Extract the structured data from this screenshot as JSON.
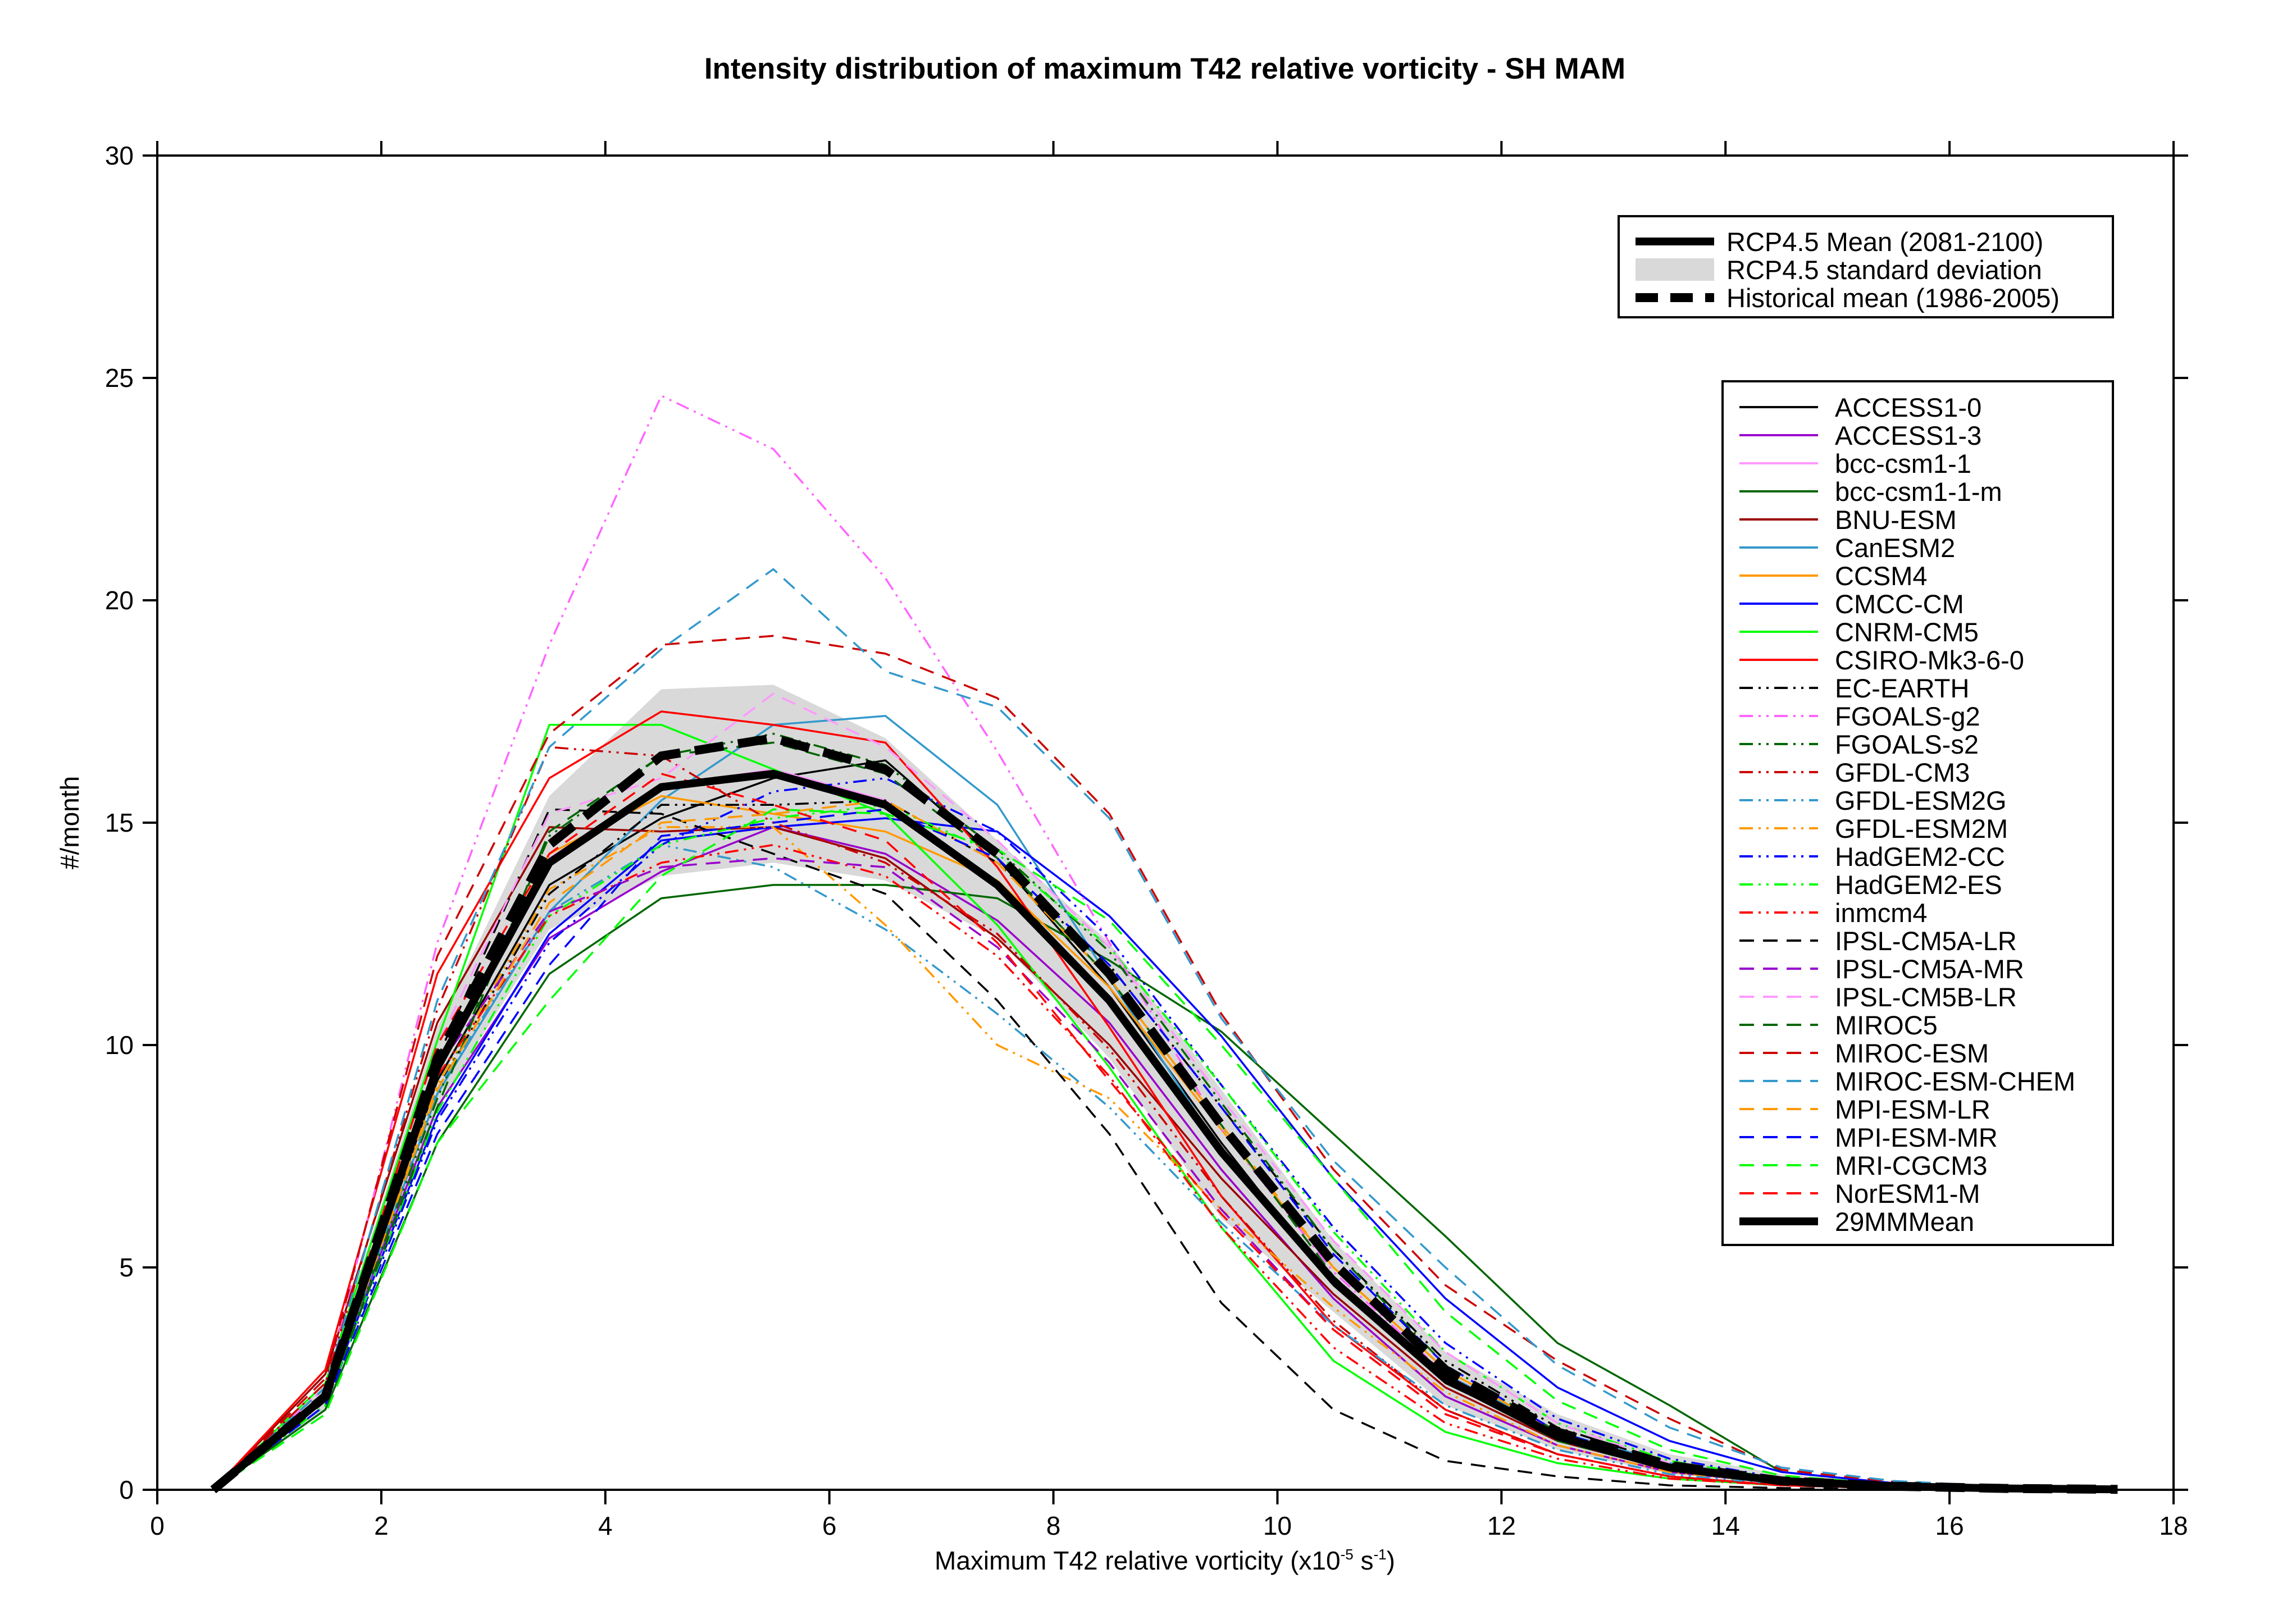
{
  "chart_data": {
    "type": "line",
    "title": "Intensity distribution of maximum T42 relative vorticity - SH MAM",
    "xlabel": {
      "main": "Maximum T42 relative vorticity (x10",
      "exp1": "-5",
      "mid": " s",
      "exp2": "-1",
      "end": ")"
    },
    "ylabel": "#/month",
    "xlim": [
      0,
      18
    ],
    "ylim": [
      0,
      30
    ],
    "xticks": [
      "0",
      "2",
      "4",
      "6",
      "8",
      "10",
      "12",
      "14",
      "16",
      "18"
    ],
    "yticks": [
      "0",
      "5",
      "10",
      "15",
      "20",
      "25",
      "30"
    ],
    "x": [
      0.5,
      1.5,
      2.5,
      3.5,
      4.5,
      5.5,
      6.5,
      7.5,
      8.5,
      9.5,
      10.5,
      11.5,
      12.5,
      13.5,
      14.5,
      15.5,
      16.5,
      17.5
    ],
    "legend_placement": "upper-right",
    "top_legend": [
      {
        "name": "RCP4.5 Mean (2081-2100)",
        "kind": "thick-solid"
      },
      {
        "name": "RCP4.5 standard deviation",
        "kind": "band"
      },
      {
        "name": "Historical mean (1986-2005)",
        "kind": "thick-dashed"
      }
    ],
    "band": {
      "upper": [
        0,
        2.4,
        10.4,
        15.6,
        18.0,
        18.1,
        16.9,
        14.6,
        12.3,
        9.0,
        5.6,
        3.1,
        1.7,
        0.8,
        0.35,
        0.15,
        0.06,
        0.03
      ],
      "lower": [
        0,
        1.8,
        8.6,
        12.6,
        13.8,
        14.1,
        13.7,
        12.4,
        9.7,
        6.1,
        4.0,
        1.9,
        0.9,
        0.35,
        0.12,
        0.05,
        0.02,
        0.01
      ]
    },
    "series": [
      {
        "name": "ACCESS1-0",
        "color": "#000000",
        "dash": "solid",
        "values": [
          0,
          2.0,
          9.2,
          13.6,
          15.1,
          16.0,
          16.4,
          14.2,
          11.3,
          7.8,
          4.6,
          2.4,
          1.2,
          0.5,
          0.2,
          0.1,
          0.04,
          0.02
        ]
      },
      {
        "name": "ACCESS1-3",
        "color": "#9900cc",
        "dash": "solid",
        "values": [
          0,
          2.1,
          8.6,
          12.4,
          13.9,
          14.9,
          14.3,
          12.8,
          10.5,
          7.2,
          4.3,
          2.1,
          1.0,
          0.4,
          0.15,
          0.06,
          0.02,
          0.01
        ]
      },
      {
        "name": "bcc-csm1-1",
        "color": "#ff99ff",
        "dash": "solid",
        "values": [
          0,
          2.2,
          9.5,
          14.2,
          15.8,
          16.2,
          15.5,
          13.6,
          11.0,
          7.6,
          4.7,
          2.5,
          1.2,
          0.5,
          0.2,
          0.08,
          0.03,
          0.01
        ]
      },
      {
        "name": "bcc-csm1-1-m",
        "color": "#006600",
        "dash": "solid",
        "values": [
          0,
          1.8,
          7.8,
          11.6,
          13.3,
          13.6,
          13.6,
          13.3,
          11.9,
          10.3,
          8.0,
          5.7,
          3.3,
          1.9,
          0.4,
          0.15,
          0.05,
          0.02
        ]
      },
      {
        "name": "BNU-ESM",
        "color": "#990000",
        "dash": "solid",
        "values": [
          0,
          2.6,
          10.5,
          14.9,
          14.8,
          14.9,
          14.2,
          12.4,
          10.0,
          7.0,
          4.4,
          2.3,
          1.1,
          0.45,
          0.17,
          0.06,
          0.02,
          0.01
        ]
      },
      {
        "name": "CanESM2",
        "color": "#3399cc",
        "dash": "solid",
        "values": [
          0,
          2.0,
          8.9,
          13.0,
          15.5,
          17.2,
          17.4,
          15.4,
          11.5,
          7.6,
          4.7,
          2.6,
          1.3,
          0.6,
          0.25,
          0.1,
          0.04,
          0.01
        ]
      },
      {
        "name": "CCSM4",
        "color": "#ff9900",
        "dash": "solid",
        "values": [
          0,
          2.2,
          9.4,
          14.3,
          15.6,
          15.2,
          14.8,
          13.7,
          11.3,
          8.1,
          5.0,
          2.7,
          1.3,
          0.55,
          0.2,
          0.08,
          0.03,
          0.01
        ]
      },
      {
        "name": "CMCC-CM",
        "color": "#0000ff",
        "dash": "solid",
        "values": [
          0,
          2.0,
          8.4,
          12.5,
          14.6,
          14.9,
          15.1,
          14.8,
          12.9,
          10.2,
          7.0,
          4.3,
          2.3,
          1.1,
          0.4,
          0.15,
          0.05,
          0.02
        ]
      },
      {
        "name": "CNRM-CM5",
        "color": "#00ff00",
        "dash": "solid",
        "values": [
          0,
          2.4,
          10.1,
          17.2,
          17.2,
          16.2,
          15.2,
          12.7,
          9.5,
          5.9,
          2.9,
          1.3,
          0.6,
          0.25,
          0.1,
          0.04,
          0.01,
          0.01
        ]
      },
      {
        "name": "CSIRO-Mk3-6-0",
        "color": "#ff0000",
        "dash": "solid",
        "values": [
          0,
          2.7,
          11.6,
          16.0,
          17.5,
          17.2,
          16.8,
          14.0,
          10.4,
          6.6,
          3.7,
          1.8,
          0.8,
          0.3,
          0.1,
          0.04,
          0.01,
          0.01
        ]
      },
      {
        "name": "EC-EARTH",
        "color": "#000000",
        "dash": "dashdotdot",
        "values": [
          0,
          2.1,
          9.0,
          13.4,
          15.4,
          15.4,
          15.5,
          14.1,
          11.8,
          8.6,
          5.4,
          2.9,
          1.4,
          0.6,
          0.22,
          0.08,
          0.03,
          0.01
        ]
      },
      {
        "name": "FGOALS-g2",
        "color": "#ff66ff",
        "dash": "dashdotdot",
        "values": [
          0,
          2.3,
          12.3,
          19.0,
          24.6,
          23.4,
          20.5,
          16.6,
          12.3,
          8.1,
          4.9,
          2.6,
          1.2,
          0.5,
          0.2,
          0.07,
          0.03,
          0.01
        ]
      },
      {
        "name": "FGOALS-s2",
        "color": "#006600",
        "dash": "dashdotdot",
        "values": [
          0,
          2.0,
          8.8,
          14.7,
          16.5,
          17.0,
          16.3,
          14.4,
          12.1,
          8.7,
          5.4,
          2.8,
          1.3,
          0.55,
          0.2,
          0.08,
          0.03,
          0.01
        ]
      },
      {
        "name": "GFDL-CM3",
        "color": "#cc0000",
        "dash": "dashdotdot",
        "values": [
          0,
          2.4,
          10.8,
          16.7,
          16.5,
          15.0,
          14.1,
          12.5,
          9.9,
          6.6,
          3.8,
          1.8,
          0.8,
          0.3,
          0.1,
          0.04,
          0.01,
          0.01
        ]
      },
      {
        "name": "GFDL-ESM2G",
        "color": "#3399cc",
        "dash": "dashdotdot",
        "values": [
          0,
          2.1,
          9.0,
          13.0,
          14.5,
          14.0,
          12.6,
          10.7,
          8.6,
          6.0,
          3.7,
          1.9,
          0.9,
          0.35,
          0.12,
          0.05,
          0.02,
          0.01
        ]
      },
      {
        "name": "GFDL-ESM2M",
        "color": "#ff9900",
        "dash": "dashdotdot",
        "values": [
          0,
          2.1,
          9.1,
          13.5,
          14.9,
          14.9,
          12.7,
          10.0,
          8.8,
          6.3,
          4.1,
          2.2,
          1.0,
          0.4,
          0.15,
          0.06,
          0.02,
          0.01
        ]
      },
      {
        "name": "HadGEM2-CC",
        "color": "#0000ff",
        "dash": "dashdotdot",
        "values": [
          0,
          1.9,
          8.3,
          12.3,
          14.5,
          15.7,
          16.0,
          14.8,
          12.4,
          9.1,
          5.9,
          3.3,
          1.6,
          0.7,
          0.26,
          0.1,
          0.04,
          0.01
        ]
      },
      {
        "name": "HadGEM2-ES",
        "color": "#00ff00",
        "dash": "dashdotdot",
        "values": [
          0,
          1.9,
          8.5,
          12.9,
          14.5,
          15.1,
          15.4,
          14.3,
          12.2,
          9.1,
          5.8,
          3.1,
          1.5,
          0.65,
          0.24,
          0.09,
          0.03,
          0.01
        ]
      },
      {
        "name": "inmcm4",
        "color": "#ff0000",
        "dash": "dashdotdot",
        "values": [
          0,
          2.0,
          9.3,
          12.9,
          14.1,
          14.5,
          13.8,
          12.0,
          9.3,
          5.9,
          3.2,
          1.5,
          0.7,
          0.25,
          0.1,
          0.03,
          0.01,
          0.01
        ]
      },
      {
        "name": "IPSL-CM5A-LR",
        "color": "#000000",
        "dash": "dashed",
        "values": [
          0,
          2.3,
          9.7,
          15.3,
          15.2,
          14.3,
          13.4,
          11.0,
          8.0,
          4.2,
          1.8,
          0.65,
          0.3,
          0.1,
          0.04,
          0.01,
          0.01,
          0.0
        ]
      },
      {
        "name": "IPSL-CM5A-MR",
        "color": "#9900cc",
        "dash": "dashed",
        "values": [
          0,
          2.2,
          9.5,
          13.0,
          14.0,
          14.2,
          14.0,
          12.2,
          9.6,
          6.3,
          3.6,
          1.7,
          0.8,
          0.3,
          0.1,
          0.04,
          0.01,
          0.01
        ]
      },
      {
        "name": "IPSL-CM5B-LR",
        "color": "#ff99ff",
        "dash": "dashed",
        "values": [
          0,
          2.2,
          10.0,
          15.2,
          16.0,
          17.9,
          16.7,
          14.6,
          12.2,
          8.8,
          5.6,
          3.1,
          1.5,
          0.6,
          0.22,
          0.08,
          0.03,
          0.01
        ]
      },
      {
        "name": "MIROC5",
        "color": "#006600",
        "dash": "dashed",
        "values": [
          0,
          1.9,
          8.6,
          14.8,
          16.5,
          16.8,
          16.1,
          14.2,
          11.5,
          8.2,
          4.8,
          2.5,
          1.1,
          0.45,
          0.17,
          0.06,
          0.02,
          0.01
        ]
      },
      {
        "name": "MIROC-ESM",
        "color": "#cc0000",
        "dash": "dashed",
        "values": [
          0,
          2.5,
          12.0,
          17.0,
          19.0,
          19.2,
          18.8,
          17.8,
          15.2,
          10.7,
          7.2,
          4.6,
          2.9,
          1.6,
          0.45,
          0.18,
          0.06,
          0.02
        ]
      },
      {
        "name": "MIROC-ESM-CHEM",
        "color": "#3399cc",
        "dash": "dashed",
        "values": [
          0,
          2.3,
          11.0,
          16.7,
          18.9,
          20.7,
          18.4,
          17.6,
          15.1,
          10.6,
          7.4,
          5.0,
          2.8,
          1.4,
          0.5,
          0.2,
          0.07,
          0.02
        ]
      },
      {
        "name": "MPI-ESM-LR",
        "color": "#ff9900",
        "dash": "dashed",
        "values": [
          0,
          2.0,
          9.0,
          13.2,
          15.0,
          15.2,
          15.5,
          14.1,
          11.5,
          8.2,
          5.0,
          2.7,
          1.3,
          0.55,
          0.2,
          0.08,
          0.03,
          0.01
        ]
      },
      {
        "name": "MPI-ESM-MR",
        "color": "#0000ff",
        "dash": "dashed",
        "values": [
          0,
          1.9,
          8.0,
          11.8,
          14.7,
          15.0,
          15.3,
          14.2,
          11.8,
          8.6,
          5.3,
          2.8,
          1.3,
          0.55,
          0.2,
          0.08,
          0.03,
          0.01
        ]
      },
      {
        "name": "MRI-CGCM3",
        "color": "#00ff00",
        "dash": "dashed",
        "values": [
          0,
          1.7,
          7.8,
          11.0,
          13.8,
          15.3,
          15.2,
          14.4,
          12.8,
          10.0,
          7.0,
          4.0,
          2.0,
          0.9,
          0.32,
          0.12,
          0.04,
          0.01
        ]
      },
      {
        "name": "NorESM1-M",
        "color": "#ff0000",
        "dash": "dashed",
        "values": [
          0,
          2.2,
          10.0,
          14.3,
          16.1,
          15.4,
          14.6,
          12.3,
          9.2,
          6.2,
          3.6,
          1.7,
          0.8,
          0.3,
          0.1,
          0.04,
          0.01,
          0.01
        ]
      },
      {
        "name": "29MMMean",
        "color": "#000000",
        "dash": "thick",
        "values": [
          0,
          2.1,
          9.5,
          14.1,
          15.8,
          16.1,
          15.4,
          13.6,
          11.0,
          7.6,
          4.7,
          2.5,
          1.2,
          0.5,
          0.2,
          0.08,
          0.03,
          0.01
        ]
      }
    ],
    "historical_mean": {
      "values": [
        0,
        2.1,
        9.7,
        14.5,
        16.5,
        16.9,
        16.2,
        14.3,
        11.6,
        8.2,
        5.1,
        2.7,
        1.3,
        0.55,
        0.2,
        0.08,
        0.03,
        0.01
      ]
    }
  }
}
